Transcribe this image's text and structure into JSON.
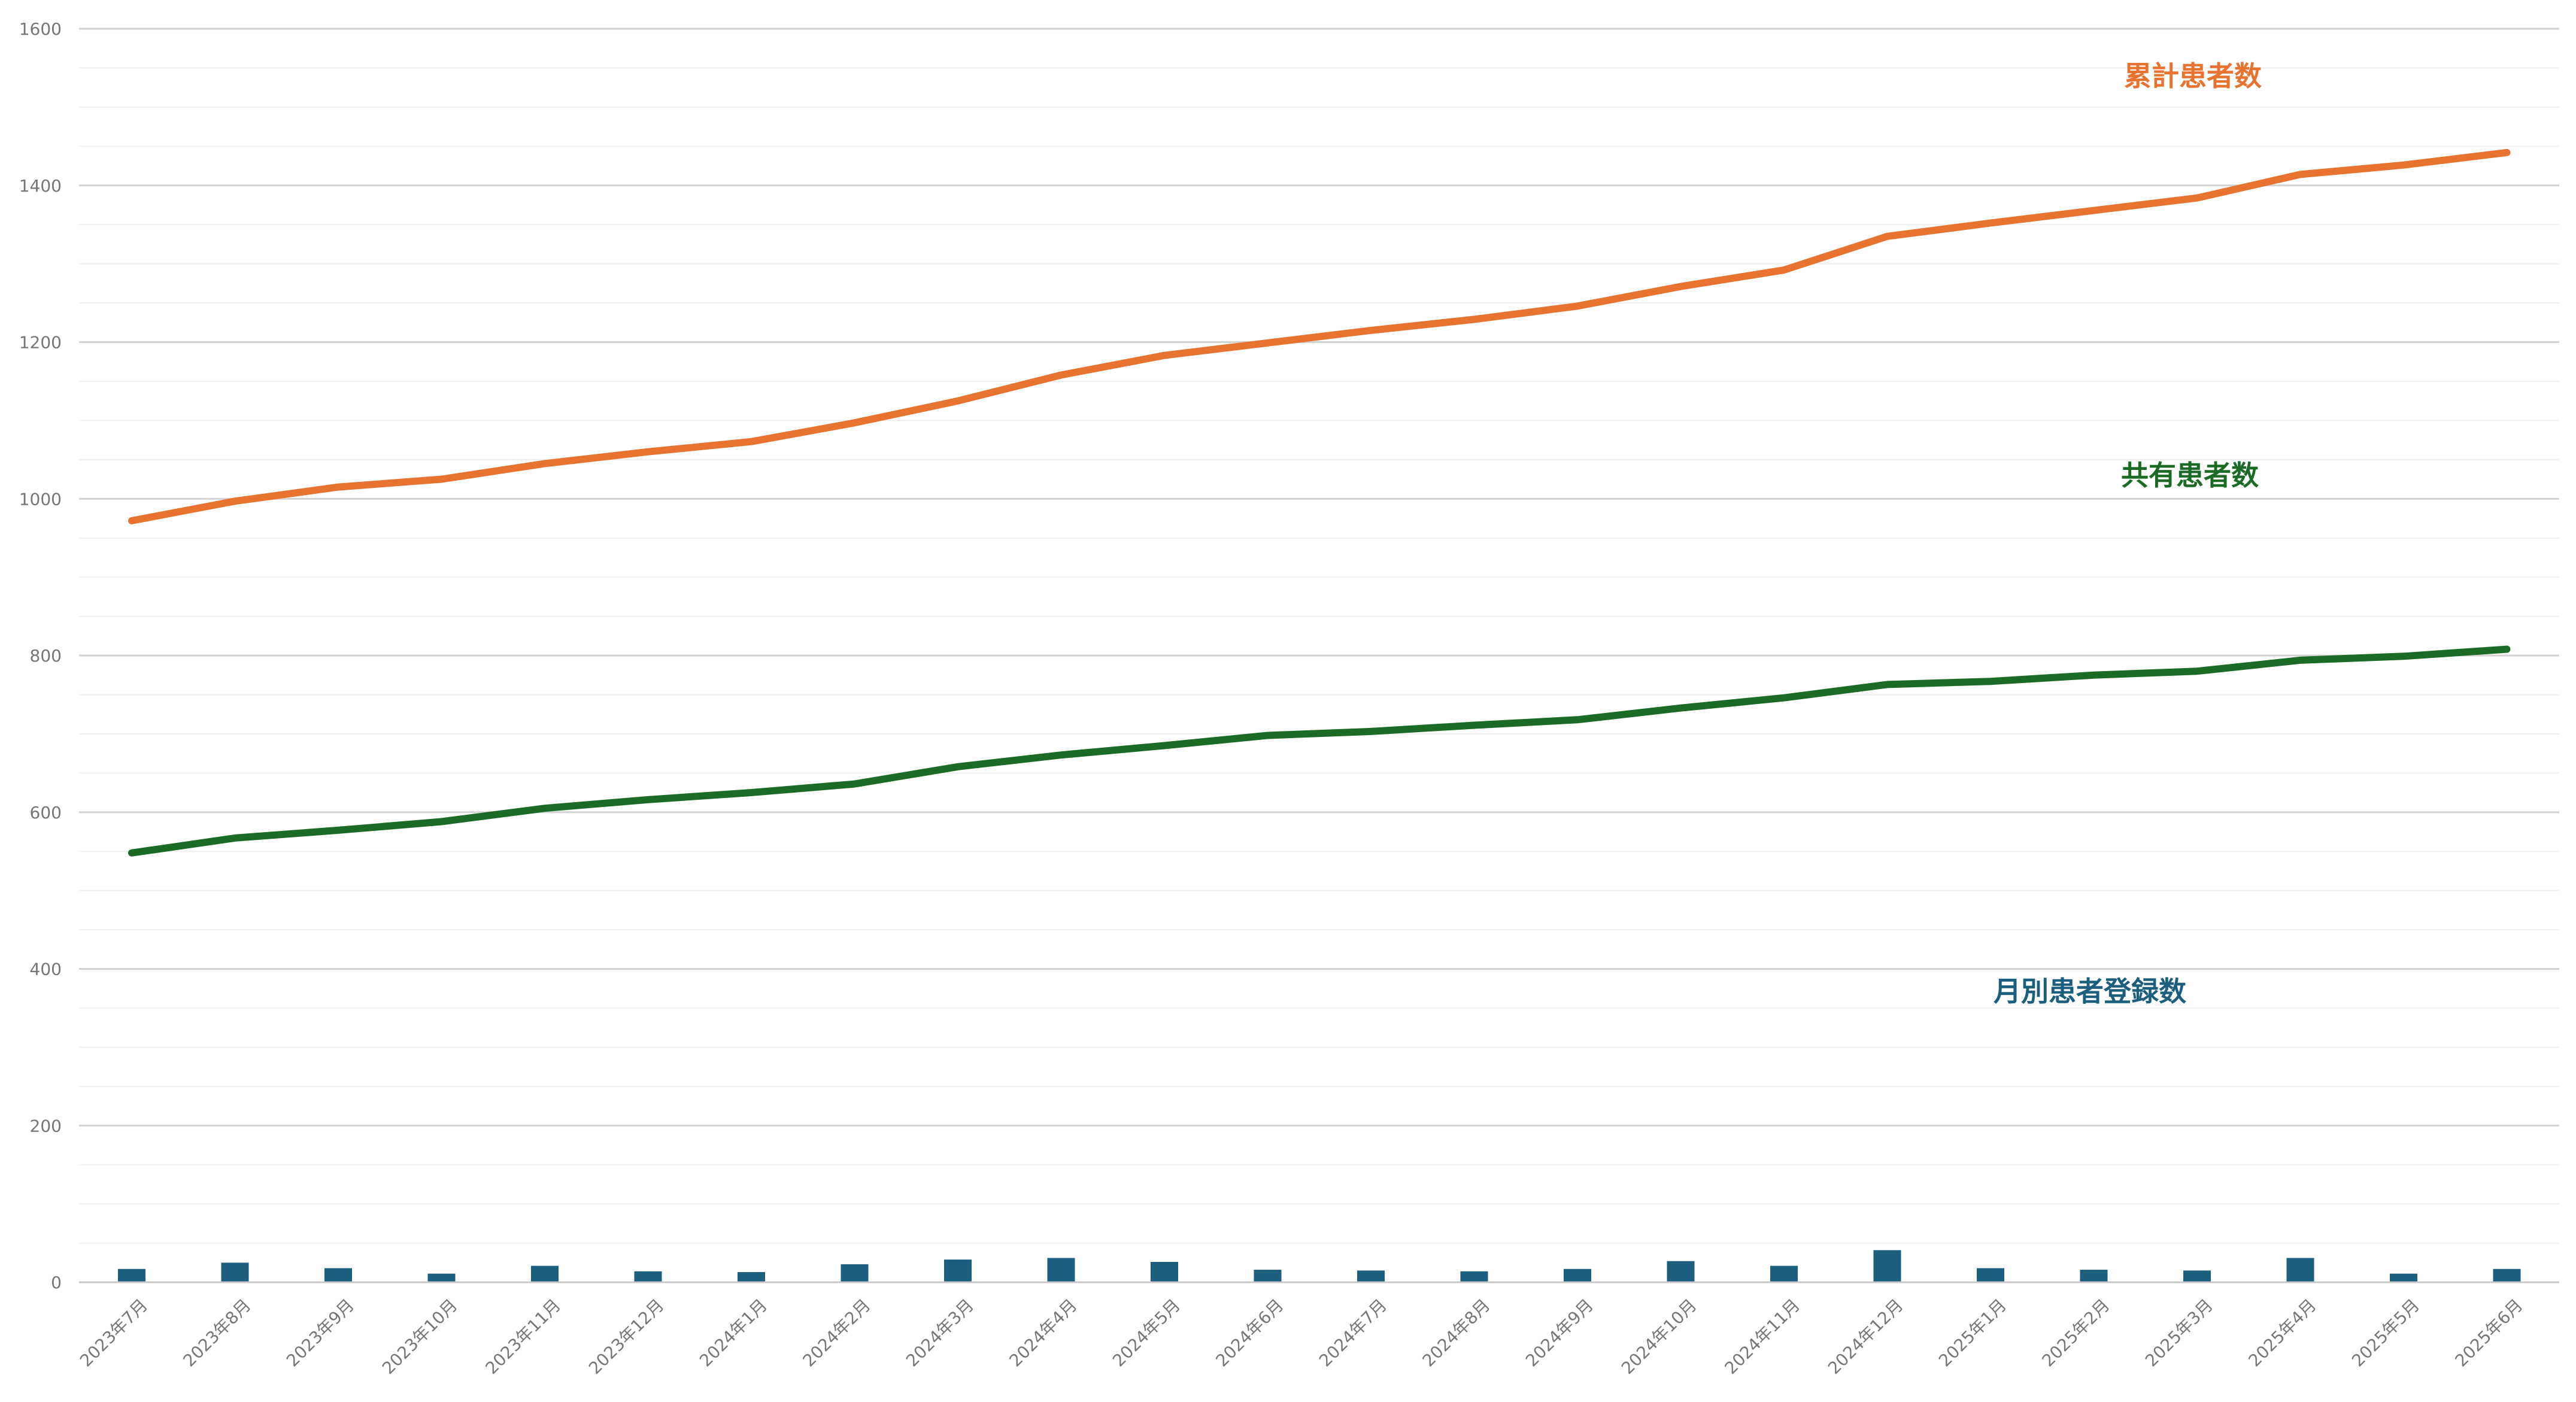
{
  "chart_data": {
    "type": "line",
    "categories": [
      "2023年7月",
      "2023年8月",
      "2023年9月",
      "2023年10月",
      "2023年11月",
      "2023年12月",
      "2024年1月",
      "2024年2月",
      "2024年3月",
      "2024年4月",
      "2024年5月",
      "2024年6月",
      "2024年7月",
      "2024年8月",
      "2024年9月",
      "2024年10月",
      "2024年11月",
      "2024年12月",
      "2025年1月",
      "2025年2月",
      "2025年3月",
      "2025年4月",
      "2025年5月",
      "2025年6月"
    ],
    "series": [
      {
        "name": "累計患者数",
        "type": "line",
        "color": "#E8722F",
        "values": [
          972,
          997,
          1015,
          1025,
          1045,
          1060,
          1073,
          1097,
          1125,
          1158,
          1183,
          1199,
          1215,
          1229,
          1246,
          1271,
          1292,
          1335,
          1352,
          1368,
          1384,
          1414,
          1426,
          1442
        ]
      },
      {
        "name": "共有患者数",
        "type": "line",
        "color": "#1B6B26",
        "values": [
          548,
          567,
          577,
          588,
          605,
          616,
          625,
          636,
          658,
          673,
          685,
          698,
          703,
          711,
          718,
          733,
          746,
          763,
          767,
          775,
          780,
          794,
          799,
          808
        ]
      },
      {
        "name": "月別患者登録数",
        "type": "bar",
        "color": "#1B5E7E",
        "values": [
          17,
          25,
          18,
          11,
          21,
          14,
          13,
          23,
          29,
          31,
          26,
          16,
          15,
          14,
          17,
          27,
          21,
          41,
          18,
          16,
          15,
          31,
          11,
          17
        ]
      }
    ],
    "y_ticks": [
      "0",
      "200",
      "400",
      "600",
      "800",
      "1000",
      "1200",
      "1400",
      "1600"
    ],
    "ylim": [
      0,
      1600
    ],
    "grid": true,
    "minor_grid": true,
    "legend": "inline labels"
  }
}
